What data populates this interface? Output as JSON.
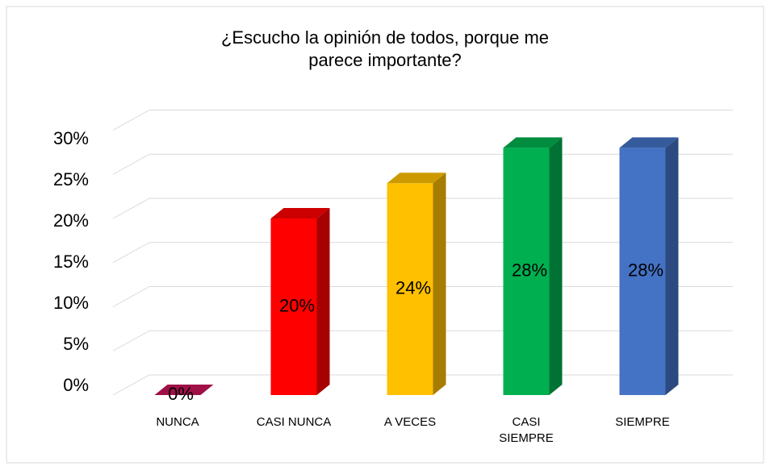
{
  "chart_data": {
    "type": "bar3d",
    "title": "¿Escucho la opinión de todos, porque me parece importante?",
    "categories": [
      "NUNCA",
      "CASI NUNCA",
      "A VECES",
      "CASI SIEMPRE",
      "SIEMPRE"
    ],
    "values": [
      0,
      20,
      24,
      28,
      28
    ],
    "value_labels": [
      "0%",
      "20%",
      "24%",
      "28%",
      "28%"
    ],
    "colors": [
      "#c8145a",
      "#ff0000",
      "#ffc000",
      "#00b050",
      "#4472c4"
    ],
    "ylim": [
      0,
      30
    ],
    "yticks": [
      {
        "value": 0,
        "label": "0%"
      },
      {
        "value": 5,
        "label": "5%"
      },
      {
        "value": 10,
        "label": "10%"
      },
      {
        "value": 15,
        "label": "15%"
      },
      {
        "value": 20,
        "label": "20%"
      },
      {
        "value": 25,
        "label": "25%"
      },
      {
        "value": 30,
        "label": "30%"
      }
    ],
    "grid": true
  }
}
